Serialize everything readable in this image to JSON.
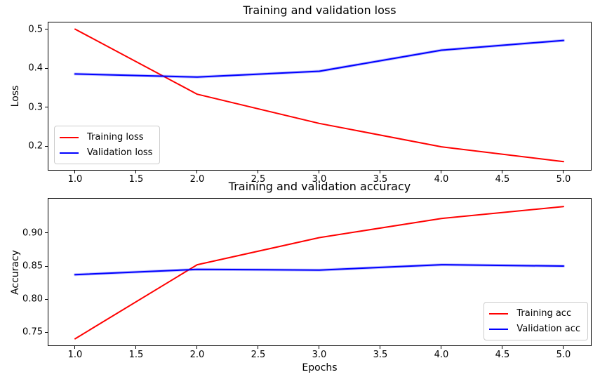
{
  "figure": {
    "background": "#ffffff",
    "axis_color": "#000000",
    "legend_border_color": "#cccccc"
  },
  "chart_data": [
    {
      "type": "line",
      "title": "Training and validation loss",
      "xlabel": "",
      "ylabel": "Loss",
      "x": [
        1,
        2,
        3,
        4,
        5
      ],
      "series": [
        {
          "name": "Training loss",
          "color": "#ff0000",
          "glow": false,
          "values": [
            0.5,
            0.333,
            0.258,
            0.198,
            0.16
          ]
        },
        {
          "name": "Validation loss",
          "color": "#0000ff",
          "glow": true,
          "values": [
            0.385,
            0.377,
            0.392,
            0.446,
            0.471
          ]
        }
      ],
      "xlim": [
        0.776,
        5.23
      ],
      "ylim": [
        0.137,
        0.519
      ],
      "xticks": [
        1.0,
        1.5,
        2.0,
        2.5,
        3.0,
        3.5,
        4.0,
        4.5,
        5.0
      ],
      "xtick_labels": [
        "1.0",
        "1.5",
        "2.0",
        "2.5",
        "3.0",
        "3.5",
        "4.0",
        "4.5",
        "5.0"
      ],
      "yticks": [
        0.2,
        0.3,
        0.4,
        0.5
      ],
      "ytick_labels": [
        "0.2",
        "0.3",
        "0.4",
        "0.5"
      ],
      "grid": false,
      "legend_position": "lower-left"
    },
    {
      "type": "line",
      "title": "Training and validation accuracy",
      "xlabel": "Epochs",
      "ylabel": "Accuracy",
      "x": [
        1,
        2,
        3,
        4,
        5
      ],
      "series": [
        {
          "name": "Training acc",
          "color": "#ff0000",
          "glow": false,
          "values": [
            0.74,
            0.852,
            0.893,
            0.922,
            0.94
          ]
        },
        {
          "name": "Validation acc",
          "color": "#0000ff",
          "glow": true,
          "values": [
            0.837,
            0.845,
            0.844,
            0.852,
            0.85
          ]
        }
      ],
      "xlim": [
        0.776,
        5.23
      ],
      "ylim": [
        0.729,
        0.953
      ],
      "xticks": [
        1.0,
        1.5,
        2.0,
        2.5,
        3.0,
        3.5,
        4.0,
        4.5,
        5.0
      ],
      "xtick_labels": [
        "1.0",
        "1.5",
        "2.0",
        "2.5",
        "3.0",
        "3.5",
        "4.0",
        "4.5",
        "5.0"
      ],
      "yticks": [
        0.75,
        0.8,
        0.85,
        0.9
      ],
      "ytick_labels": [
        "0.75",
        "0.80",
        "0.85",
        "0.90"
      ],
      "grid": false,
      "legend_position": "lower-right"
    }
  ]
}
